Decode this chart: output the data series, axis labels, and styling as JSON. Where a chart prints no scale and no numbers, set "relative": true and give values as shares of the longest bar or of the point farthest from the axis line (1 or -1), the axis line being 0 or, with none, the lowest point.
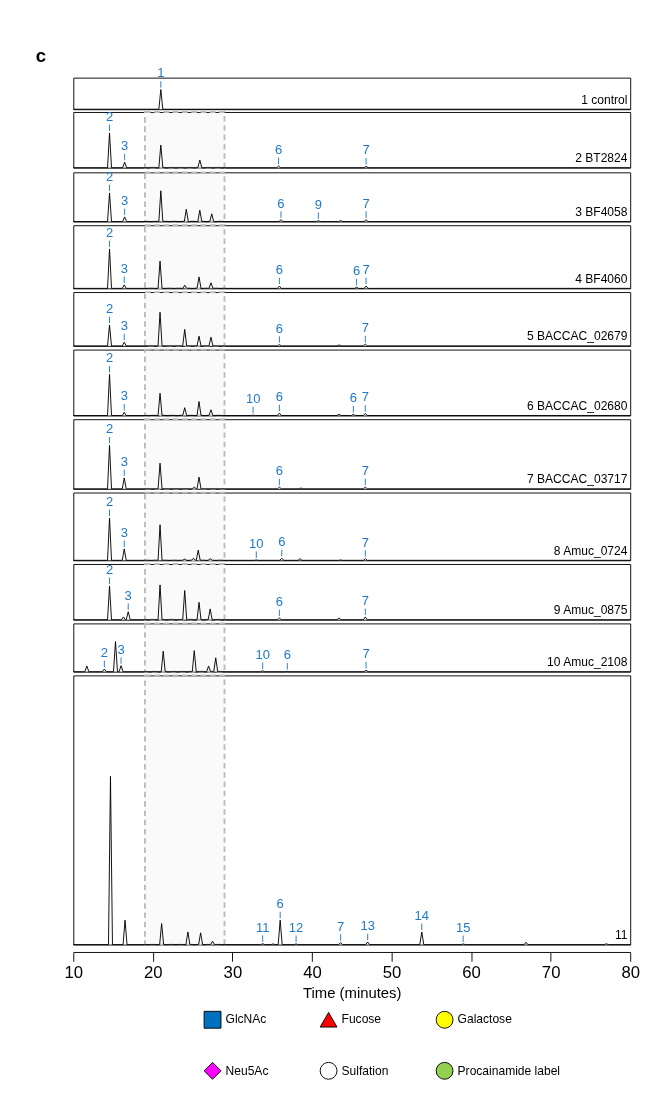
{
  "chart_data": [
    {
      "type": "line",
      "title": "c",
      "relative": true,
      "xlim": [
        10,
        80
      ],
      "tick_labels": false,
      "series": [
        {
          "name": "1 control",
          "color": "#000000",
          "x": [
            10,
            20.75,
            21.0,
            21.25,
            80
          ],
          "values": [
            0,
            0,
            1,
            0,
            0
          ]
        }
      ],
      "annotations": [
        {
          "text": "1",
          "x": 21.0,
          "y": 1
        }
      ]
    },
    {
      "type": "line",
      "relative": true,
      "xlim": [
        10,
        80
      ],
      "tick_labels": false,
      "bands": [
        {
          "axis": "x",
          "from": 19,
          "to": 29,
          "color": "#bbbbbb"
        }
      ],
      "series": [
        {
          "name": "2 BT2824",
          "color": "#000000",
          "x": [
            10,
            14.3,
            14.55,
            14.8,
            16.2,
            16.45,
            16.7,
            20.75,
            21.0,
            21.25,
            25.65,
            25.9,
            26.15,
            35.55,
            35.8,
            36.05,
            46.55,
            46.8,
            47.05,
            80
          ],
          "values": [
            0,
            0,
            1,
            0,
            0,
            0.16,
            0,
            0,
            0.65,
            0,
            0,
            0.22,
            0,
            0,
            0.05,
            0,
            0,
            0.04,
            0,
            0
          ]
        }
      ],
      "annotations": [
        {
          "text": "2",
          "x": 14.55,
          "y": 1
        },
        {
          "text": "3",
          "x": 16.45,
          "y": 0.16
        },
        {
          "text": "6",
          "x": 35.8,
          "y": 0.05
        },
        {
          "text": "7",
          "x": 46.8,
          "y": 0.04
        }
      ]
    },
    {
      "type": "line",
      "relative": true,
      "xlim": [
        10,
        80
      ],
      "tick_labels": false,
      "bands": [
        {
          "axis": "x",
          "from": 19,
          "to": 29,
          "color": "#bbbbbb"
        }
      ],
      "series": [
        {
          "name": "3 BF4058",
          "color": "#000000",
          "x": [
            10,
            14.3,
            14.55,
            14.8,
            16.2,
            16.45,
            16.7,
            20.75,
            21.0,
            21.25,
            23.95,
            24.2,
            24.45,
            25.65,
            25.9,
            26.15,
            27.15,
            27.4,
            27.65,
            35.85,
            36.1,
            36.35,
            40.55,
            40.8,
            41.05,
            43.35,
            43.6,
            43.85,
            46.55,
            46.8,
            47.05,
            80
          ],
          "values": [
            0,
            0,
            0.93,
            0,
            0,
            0.15,
            0,
            0,
            1,
            0,
            0,
            0.4,
            0,
            0,
            0.37,
            0,
            0,
            0.25,
            0,
            0,
            0.06,
            0,
            0,
            0.03,
            0,
            0,
            0.03,
            0,
            0,
            0.06,
            0,
            0
          ]
        }
      ],
      "annotations": [
        {
          "text": "2",
          "x": 14.55,
          "y": 0.93
        },
        {
          "text": "3",
          "x": 16.45,
          "y": 0.15
        },
        {
          "text": "6",
          "x": 36.1,
          "y": 0.06
        },
        {
          "text": "9",
          "x": 40.8,
          "y": 0.03
        },
        {
          "text": "7",
          "x": 46.8,
          "y": 0.06
        }
      ]
    },
    {
      "type": "line",
      "relative": true,
      "xlim": [
        10,
        80
      ],
      "tick_labels": false,
      "bands": [
        {
          "axis": "x",
          "from": 19,
          "to": 29,
          "color": "#bbbbbb"
        }
      ],
      "series": [
        {
          "name": "4 BF4060",
          "color": "#000000",
          "x": [
            10,
            14.3,
            14.55,
            14.8,
            16.15,
            16.4,
            16.65,
            20.65,
            20.9,
            21.15,
            23.75,
            24.0,
            24.25,
            25.55,
            25.8,
            26.05,
            27.05,
            27.3,
            27.55,
            35.65,
            35.9,
            36.15,
            45.35,
            45.6,
            45.85,
            46.55,
            46.8,
            47.05,
            80
          ],
          "values": [
            0,
            0,
            1,
            0,
            0,
            0.09,
            0,
            0,
            0.69,
            0,
            0,
            0.08,
            0,
            0,
            0.29,
            0,
            0,
            0.14,
            0,
            0,
            0.06,
            0,
            0,
            0.03,
            0,
            0,
            0.06,
            0,
            0
          ]
        }
      ],
      "annotations": [
        {
          "text": "2",
          "x": 14.55,
          "y": 1
        },
        {
          "text": "3",
          "x": 16.4,
          "y": 0.09
        },
        {
          "text": "6",
          "x": 35.9,
          "y": 0.06
        },
        {
          "text": "6",
          "x": 45.6,
          "y": 0.03
        },
        {
          "text": "7",
          "x": 46.8,
          "y": 0.06
        }
      ]
    },
    {
      "type": "line",
      "relative": true,
      "xlim": [
        10,
        80
      ],
      "tick_labels": false,
      "bands": [
        {
          "axis": "x",
          "from": 19,
          "to": 29,
          "color": "#bbbbbb"
        }
      ],
      "series": [
        {
          "name": "5 BACCAC_02679",
          "color": "#000000",
          "x": [
            10,
            14.3,
            14.55,
            14.8,
            16.15,
            16.4,
            16.65,
            20.65,
            20.9,
            21.15,
            23.75,
            24.0,
            24.25,
            25.55,
            25.8,
            26.05,
            27.05,
            27.3,
            27.55,
            35.65,
            35.9,
            36.15,
            43.15,
            43.4,
            43.65,
            46.45,
            46.7,
            46.95,
            80
          ],
          "values": [
            0,
            0,
            0.62,
            0,
            0,
            0.11,
            0,
            0,
            1,
            0,
            0,
            0.49,
            0,
            0,
            0.29,
            0,
            0,
            0.26,
            0,
            0,
            0.04,
            0,
            0,
            0.03,
            0,
            0,
            0.05,
            0,
            0
          ]
        }
      ],
      "annotations": [
        {
          "text": "2",
          "x": 14.55,
          "y": 0.62
        },
        {
          "text": "3",
          "x": 16.4,
          "y": 0.11
        },
        {
          "text": "6",
          "x": 35.9,
          "y": 0.04
        },
        {
          "text": "7",
          "x": 46.7,
          "y": 0.05
        }
      ]
    },
    {
      "type": "line",
      "relative": true,
      "xlim": [
        10,
        80
      ],
      "tick_labels": false,
      "bands": [
        {
          "axis": "x",
          "from": 19,
          "to": 29,
          "color": "#bbbbbb"
        }
      ],
      "series": [
        {
          "name": "6 BACCAC_02680",
          "color": "#000000",
          "x": [
            10,
            14.3,
            14.55,
            14.8,
            16.15,
            16.4,
            16.65,
            20.65,
            20.9,
            21.15,
            23.75,
            24.0,
            24.25,
            25.55,
            25.8,
            26.05,
            27.05,
            27.3,
            27.55,
            32.35,
            32.6,
            32.85,
            35.65,
            35.9,
            36.15,
            43.15,
            43.4,
            43.65,
            44.95,
            45.2,
            45.45,
            46.45,
            46.7,
            46.95,
            80
          ],
          "values": [
            0,
            0,
            1,
            0,
            0,
            0.08,
            0,
            0,
            0.54,
            0,
            0,
            0.19,
            0,
            0,
            0.34,
            0,
            0,
            0.14,
            0,
            0,
            0.01,
            0,
            0,
            0.06,
            0,
            0,
            0.03,
            0,
            0,
            0.03,
            0,
            0,
            0.05,
            0,
            0
          ]
        }
      ],
      "annotations": [
        {
          "text": "2",
          "x": 14.55,
          "y": 1
        },
        {
          "text": "3",
          "x": 16.4,
          "y": 0.08
        },
        {
          "text": "10",
          "x": 32.6,
          "y": 0.01
        },
        {
          "text": "6",
          "x": 35.9,
          "y": 0.06
        },
        {
          "text": "6",
          "x": 45.2,
          "y": 0.03
        },
        {
          "text": "7",
          "x": 46.7,
          "y": 0.05
        }
      ]
    },
    {
      "type": "line",
      "relative": true,
      "xlim": [
        10,
        80
      ],
      "tick_labels": false,
      "bands": [
        {
          "axis": "x",
          "from": 19,
          "to": 29,
          "color": "#bbbbbb"
        }
      ],
      "series": [
        {
          "name": "7 BACCAC_03717",
          "color": "#000000",
          "x": [
            10,
            14.3,
            14.55,
            14.8,
            16.15,
            16.4,
            16.65,
            20.65,
            20.9,
            21.15,
            24.95,
            25.2,
            25.45,
            25.55,
            25.8,
            26.05,
            35.65,
            35.9,
            36.15,
            38.35,
            38.6,
            38.85,
            46.45,
            46.7,
            46.95,
            80
          ],
          "values": [
            0,
            0,
            1,
            0,
            0,
            0.25,
            0,
            0,
            0.59,
            0,
            0,
            0.04,
            0,
            0,
            0.27,
            0,
            0,
            0.04,
            0,
            0,
            0.02,
            0,
            0,
            0.04,
            0,
            0
          ]
        }
      ],
      "annotations": [
        {
          "text": "2",
          "x": 14.55,
          "y": 1
        },
        {
          "text": "3",
          "x": 16.4,
          "y": 0.25
        },
        {
          "text": "6",
          "x": 35.9,
          "y": 0.04
        },
        {
          "text": "7",
          "x": 46.7,
          "y": 0.04
        }
      ]
    },
    {
      "type": "line",
      "relative": true,
      "xlim": [
        10,
        80
      ],
      "tick_labels": false,
      "bands": [
        {
          "axis": "x",
          "from": 19,
          "to": 29,
          "color": "#bbbbbb"
        }
      ],
      "series": [
        {
          "name": "8 Amuc_0724",
          "color": "#000000",
          "x": [
            10,
            14.3,
            14.55,
            14.8,
            16.15,
            16.4,
            16.65,
            20.65,
            20.9,
            21.15,
            23.75,
            24.0,
            24.25,
            24.85,
            25.1,
            25.35,
            25.45,
            25.7,
            25.95,
            26.95,
            27.2,
            27.45,
            32.75,
            33.0,
            33.25,
            35.95,
            36.2,
            36.45,
            38.25,
            38.5,
            38.75,
            43.35,
            43.6,
            43.85,
            46.45,
            46.7,
            46.95,
            80
          ],
          "values": [
            0,
            0,
            1,
            0,
            0,
            0.27,
            0,
            0,
            0.84,
            0,
            0,
            0.03,
            0,
            0,
            0.05,
            0,
            0,
            0.24,
            0,
            0,
            0.04,
            0,
            0,
            0.01,
            0,
            0,
            0.05,
            0,
            0,
            0.04,
            0,
            0,
            0.01,
            0,
            0,
            0.04,
            0,
            0
          ]
        }
      ],
      "annotations": [
        {
          "text": "2",
          "x": 14.55,
          "y": 1
        },
        {
          "text": "3",
          "x": 16.4,
          "y": 0.27
        },
        {
          "text": "10",
          "x": 33.0,
          "y": 0.01
        },
        {
          "text": "6",
          "x": 36.2,
          "y": 0.05
        },
        {
          "text": "7",
          "x": 46.7,
          "y": 0.04
        }
      ]
    },
    {
      "type": "line",
      "relative": true,
      "xlim": [
        10,
        80
      ],
      "tick_labels": false,
      "bands": [
        {
          "axis": "x",
          "from": 19,
          "to": 29,
          "color": "#bbbbbb"
        }
      ],
      "series": [
        {
          "name": "9 Amuc_0875",
          "color": "#000000",
          "x": [
            10,
            14.3,
            14.55,
            14.8,
            16.05,
            16.3,
            16.55,
            16.65,
            16.9,
            17.15,
            20.65,
            20.9,
            21.15,
            23.75,
            24.0,
            24.25,
            25.55,
            25.8,
            26.05,
            26.95,
            27.2,
            27.45,
            35.65,
            35.9,
            36.15,
            43.15,
            43.4,
            43.65,
            46.45,
            46.7,
            46.95,
            80
          ],
          "values": [
            0,
            0,
            0.97,
            0,
            0,
            0.08,
            0,
            0,
            0.23,
            0,
            0,
            1,
            0,
            0,
            0.84,
            0,
            0,
            0.5,
            0,
            0,
            0.31,
            0,
            0,
            0.05,
            0,
            0,
            0.05,
            0,
            0,
            0.08,
            0,
            0
          ]
        }
      ],
      "annotations": [
        {
          "text": "2",
          "x": 14.55,
          "y": 0.97
        },
        {
          "text": "3",
          "x": 16.9,
          "y": 0.23
        },
        {
          "text": "6",
          "x": 35.9,
          "y": 0.05
        },
        {
          "text": "7",
          "x": 46.7,
          "y": 0.08
        }
      ]
    },
    {
      "type": "line",
      "relative": true,
      "xlim": [
        10,
        80
      ],
      "tick_labels": false,
      "bands": [
        {
          "axis": "x",
          "from": 19,
          "to": 29,
          "color": "#bbbbbb"
        }
      ],
      "series": [
        {
          "name": "10 Amuc_2108",
          "color": "#000000",
          "x": [
            10,
            11.45,
            11.7,
            11.95,
            13.65,
            13.9,
            14.15,
            15.05,
            15.3,
            15.55,
            15.75,
            16.0,
            16.25,
            21.05,
            21.3,
            21.55,
            24.95,
            25.2,
            25.45,
            26.75,
            27.0,
            27.25,
            27.65,
            27.9,
            28.15,
            33.55,
            33.8,
            34.05,
            36.65,
            36.9,
            37.15,
            46.55,
            46.8,
            47.05,
            80
          ],
          "values": [
            0,
            0,
            0.19,
            0,
            0,
            0.09,
            0,
            0,
            1,
            0,
            0,
            0.2,
            0,
            0,
            0.68,
            0,
            0,
            0.7,
            0,
            0,
            0.19,
            0,
            0,
            0.46,
            0,
            0,
            0.03,
            0,
            0,
            0.01,
            0,
            0,
            0.05,
            0,
            0
          ]
        }
      ],
      "annotations": [
        {
          "text": "2",
          "x": 13.9,
          "y": 0.09
        },
        {
          "text": "3",
          "x": 16.0,
          "y": 0.2
        },
        {
          "text": "10",
          "x": 33.8,
          "y": 0.03
        },
        {
          "text": "6",
          "x": 36.9,
          "y": 0.01
        },
        {
          "text": "7",
          "x": 46.8,
          "y": 0.05
        }
      ]
    },
    {
      "type": "line",
      "relative": true,
      "xlim": [
        10,
        80
      ],
      "xticks": [
        10,
        20,
        30,
        40,
        50,
        60,
        70,
        80
      ],
      "xlabel": "Time (minutes)",
      "bands": [
        {
          "axis": "x",
          "from": 19,
          "to": 29,
          "color": "#bbbbbb"
        }
      ],
      "series": [
        {
          "name": "11",
          "color": "#000000",
          "x": [
            10,
            14.42,
            14.67,
            14.92,
            16.25,
            16.5,
            16.75,
            20.85,
            21.1,
            21.35,
            24.15,
            24.4,
            24.65,
            25.75,
            26.0,
            26.25,
            27.25,
            27.5,
            27.75,
            33.55,
            33.8,
            34.05,
            34.85,
            35.1,
            35.35,
            35.75,
            36.0,
            36.25,
            37.75,
            38.0,
            38.25,
            43.35,
            43.6,
            43.85,
            46.75,
            47.0,
            47.25,
            53.55,
            53.8,
            54.05,
            58.75,
            59.0,
            59.25,
            66.65,
            66.9,
            67.15,
            76.75,
            77.0,
            77.25,
            80
          ],
          "values": [
            0,
            0,
            1,
            0,
            0,
            0.145,
            0,
            0,
            0.125,
            0,
            0,
            0.075,
            0,
            0,
            0.07,
            0,
            0,
            0.02,
            0,
            0,
            0.005,
            0,
            0,
            0.004,
            0,
            0,
            0.145,
            0,
            0,
            0.004,
            0,
            0,
            0.012,
            0,
            0,
            0.015,
            0,
            0,
            0.075,
            0,
            0,
            0.004,
            0,
            0,
            0.014,
            0,
            0,
            0.005,
            0,
            0
          ]
        }
      ],
      "annotations": [
        {
          "text": "11",
          "x": 33.8,
          "y": 0.005
        },
        {
          "text": "6",
          "x": 36.0,
          "y": 0.145
        },
        {
          "text": "12",
          "x": 38.0,
          "y": 0.004
        },
        {
          "text": "7",
          "x": 43.6,
          "y": 0.012
        },
        {
          "text": "13",
          "x": 47.0,
          "y": 0.015
        },
        {
          "text": "14",
          "x": 53.8,
          "y": 0.075
        },
        {
          "text": "15",
          "x": 59.0,
          "y": 0.004
        }
      ]
    },
    {
      "type": "other",
      "series": [
        {
          "name": "GlcNAc",
          "color": "#0070c0",
          "marker": "square"
        },
        {
          "name": "Fucose",
          "color": "#ff0000",
          "marker": "triangle"
        },
        {
          "name": "Galactose",
          "color": "#ffff00",
          "marker": "circle"
        },
        {
          "name": "Neu5Ac",
          "color": "#ff00ff",
          "marker": "diamond"
        },
        {
          "name": "Sulfation",
          "color": "#ffffff",
          "marker": "circle"
        },
        {
          "name": "Procainamide label",
          "color": "#92d050",
          "marker": "circle"
        }
      ]
    }
  ]
}
